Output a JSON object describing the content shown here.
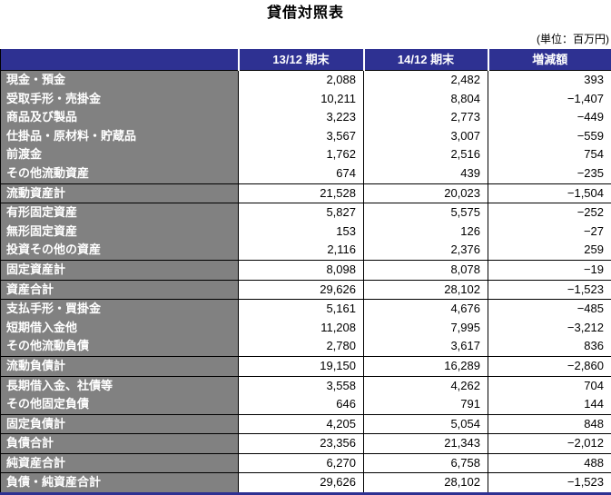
{
  "title": "貸借対照表",
  "unit_note": "(単位：百万円)",
  "colors": {
    "header_bg": "#2E3192",
    "label_bg": "#818181",
    "header_text": "#FFFFFF",
    "label_text": "#FFFFFF",
    "value_text": "#000000",
    "grid": "#000000",
    "bottom_rule": "#2E3192"
  },
  "columns": [
    "",
    "13/12 期末",
    "14/12 期末",
    "増減額"
  ],
  "rows": [
    {
      "label": "現金・預金",
      "p1": "2,088",
      "p2": "2,482",
      "chg": "393",
      "type": "detail",
      "group_start": true
    },
    {
      "label": "受取手形・売掛金",
      "p1": "10,211",
      "p2": "8,804",
      "chg": "−1,407",
      "type": "detail"
    },
    {
      "label": "商品及び製品",
      "p1": "3,223",
      "p2": "2,773",
      "chg": "−449",
      "type": "detail"
    },
    {
      "label": "仕掛品・原材料・貯蔵品",
      "p1": "3,567",
      "p2": "3,007",
      "chg": "−559",
      "type": "detail"
    },
    {
      "label": "前渡金",
      "p1": "1,762",
      "p2": "2,516",
      "chg": "754",
      "type": "detail"
    },
    {
      "label": "その他流動資産",
      "p1": "674",
      "p2": "439",
      "chg": "−235",
      "type": "detail"
    },
    {
      "label": "流動資産計",
      "p1": "21,528",
      "p2": "20,023",
      "chg": "−1,504",
      "type": "subtotal"
    },
    {
      "label": "有形固定資産",
      "p1": "5,827",
      "p2": "5,575",
      "chg": "−252",
      "type": "detail",
      "group_start": true
    },
    {
      "label": "無形固定資産",
      "p1": "153",
      "p2": "126",
      "chg": "−27",
      "type": "detail"
    },
    {
      "label": "投資その他の資産",
      "p1": "2,116",
      "p2": "2,376",
      "chg": "259",
      "type": "detail"
    },
    {
      "label": "固定資産計",
      "p1": "8,098",
      "p2": "8,078",
      "chg": "−19",
      "type": "subtotal"
    },
    {
      "label": "資産合計",
      "p1": "29,626",
      "p2": "28,102",
      "chg": "−1,523",
      "type": "subtotal"
    },
    {
      "label": "支払手形・買掛金",
      "p1": "5,161",
      "p2": "4,676",
      "chg": "−485",
      "type": "detail",
      "group_start": true
    },
    {
      "label": "短期借入金他",
      "p1": "11,208",
      "p2": "7,995",
      "chg": "−3,212",
      "type": "detail"
    },
    {
      "label": "その他流動負債",
      "p1": "2,780",
      "p2": "3,617",
      "chg": "836",
      "type": "detail"
    },
    {
      "label": "流動負債計",
      "p1": "19,150",
      "p2": "16,289",
      "chg": "−2,860",
      "type": "subtotal"
    },
    {
      "label": "長期借入金、社債等",
      "p1": "3,558",
      "p2": "4,262",
      "chg": "704",
      "type": "detail",
      "group_start": true
    },
    {
      "label": "その他固定負債",
      "p1": "646",
      "p2": "791",
      "chg": "144",
      "type": "detail"
    },
    {
      "label": "固定負債計",
      "p1": "4,205",
      "p2": "5,054",
      "chg": "848",
      "type": "subtotal"
    },
    {
      "label": "負債合計",
      "p1": "23,356",
      "p2": "21,343",
      "chg": "−2,012",
      "type": "subtotal"
    },
    {
      "label": "純資産合計",
      "p1": "6,270",
      "p2": "6,758",
      "chg": "488",
      "type": "subtotal"
    },
    {
      "label": "負債・純資産合計",
      "p1": "29,626",
      "p2": "28,102",
      "chg": "−1,523",
      "type": "subtotal"
    }
  ]
}
